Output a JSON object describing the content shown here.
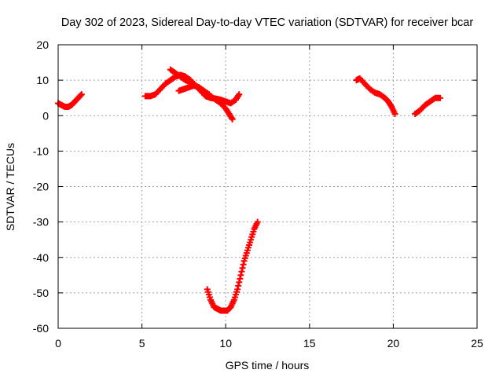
{
  "chart_data": {
    "type": "scatter",
    "title": "Day 302 of 2023, Sidereal Day-to-day VTEC variation (SDTVAR) for receiver bcar",
    "xlabel": "GPS time / hours",
    "ylabel": "SDTVAR / TECUs",
    "xlim": [
      0,
      25
    ],
    "ylim": [
      -60,
      20
    ],
    "xticks": [
      0,
      5,
      10,
      15,
      20,
      25
    ],
    "yticks": [
      -60,
      -50,
      -40,
      -30,
      -20,
      -10,
      0,
      10,
      20
    ],
    "grid": true,
    "color": "#ff0000",
    "marker": "plus",
    "series": [
      {
        "x": [
          0.0,
          0.2,
          0.4,
          0.6,
          0.8,
          1.0,
          1.2,
          1.4
        ],
        "y": [
          3.5,
          3.0,
          2.5,
          2.5,
          3.0,
          4.0,
          5.0,
          6.0
        ]
      },
      {
        "x": [
          5.2,
          5.5,
          5.8,
          6.1,
          6.4,
          6.7,
          7.0,
          7.3,
          7.6,
          7.9,
          8.2,
          8.5,
          8.8,
          9.1,
          9.4,
          9.7,
          10.0,
          10.3,
          10.6,
          10.8
        ],
        "y": [
          5.5,
          5.5,
          6.0,
          7.5,
          9.0,
          10.0,
          11.0,
          11.5,
          11.0,
          10.0,
          8.5,
          7.0,
          5.5,
          5.0,
          4.8,
          4.5,
          4.0,
          3.5,
          4.5,
          6.0
        ]
      },
      {
        "x": [
          6.7,
          7.0,
          7.3,
          7.6,
          7.9,
          8.2,
          8.5,
          8.8,
          9.1,
          9.4,
          9.7,
          10.0,
          10.2,
          10.4
        ],
        "y": [
          13.0,
          12.0,
          11.0,
          10.0,
          9.5,
          8.5,
          7.5,
          6.5,
          5.5,
          4.5,
          3.5,
          2.0,
          0.5,
          -1.0
        ]
      },
      {
        "x": [
          7.2,
          7.5,
          7.8,
          8.1,
          8.4,
          8.7,
          9.0
        ],
        "y": [
          7.0,
          7.5,
          8.0,
          8.5,
          8.0,
          7.0,
          6.0
        ]
      },
      {
        "x": [
          8.9,
          9.1,
          9.3,
          9.5,
          9.7,
          9.9,
          10.1,
          10.3,
          10.5,
          10.7,
          10.9,
          11.1,
          11.3,
          11.5,
          11.7,
          11.9
        ],
        "y": [
          -49,
          -52,
          -54,
          -54.5,
          -55,
          -55,
          -55,
          -54,
          -52,
          -49,
          -45,
          -41,
          -38,
          -35,
          -32,
          -30
        ]
      },
      {
        "x": [
          17.8,
          18.0,
          18.3,
          18.6,
          18.9,
          19.2,
          19.5,
          19.7,
          19.9,
          20.1
        ],
        "y": [
          10.0,
          10.5,
          9.0,
          7.5,
          6.5,
          6.0,
          5.0,
          4.0,
          2.5,
          0.5
        ]
      },
      {
        "x": [
          21.3,
          21.6,
          21.9,
          22.2,
          22.5,
          22.8
        ],
        "y": [
          0.5,
          1.5,
          3.0,
          4.0,
          5.0,
          5.0
        ]
      }
    ]
  }
}
